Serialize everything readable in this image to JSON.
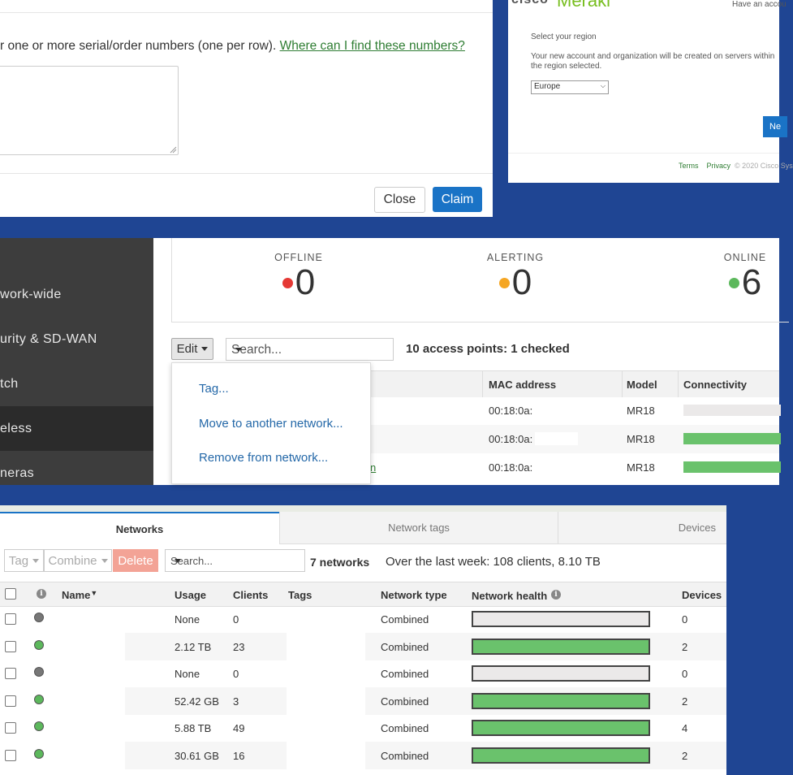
{
  "colors": {
    "background_blue": "#1f4593",
    "primary": "#1a73c6",
    "link_green": "#2e7d32",
    "status_offline": "#e53935",
    "status_alerting": "#f5a623",
    "status_online": "#5cb85c",
    "bar_green": "#6ac26c",
    "bar_empty": "#ebe9e9",
    "delete_salmon": "#f3a396"
  },
  "claim_dialog": {
    "instruction_text": "r one or more serial/order numbers (one per row).",
    "help_link": "Where can I find these numbers?",
    "close_label": "Close",
    "claim_label": "Claim"
  },
  "region_dialog": {
    "logo_left": "cisco",
    "logo_right": "Meraki",
    "have_account": "Have an accou",
    "select_label": "Select your region",
    "description": "Your new account and organization will be created on servers within the region selected.",
    "region_value": "Europe",
    "next_label": "Ne",
    "footer_terms": "Terms",
    "footer_privacy": "Privacy",
    "footer_copyright": "© 2020 Cisco Sys"
  },
  "sidebar": {
    "items": [
      {
        "label": "work-wide"
      },
      {
        "label": "urity & SD-WAN"
      },
      {
        "label": "tch"
      },
      {
        "label": "eless"
      },
      {
        "label": "neras"
      }
    ]
  },
  "status_counts": {
    "offline": {
      "label": "OFFLINE",
      "value": "0"
    },
    "alerting": {
      "label": "ALERTING",
      "value": "0"
    },
    "online": {
      "label": "ONLINE",
      "value": "6"
    }
  },
  "ap_toolbar": {
    "edit_label": "Edit",
    "search_placeholder": "Search...",
    "count_text": "10 access points: 1 checked"
  },
  "edit_menu": {
    "items": [
      "Tag...",
      "Move to another network...",
      "Remove from network..."
    ]
  },
  "ap_table": {
    "columns": [
      "MAC address",
      "Model",
      "Connectivity"
    ],
    "rows": [
      {
        "mac": "00:18:0a:",
        "model": "MR18",
        "connectivity": 0
      },
      {
        "mac": "00:18:0a:",
        "model": "MR18",
        "connectivity": 1
      },
      {
        "name_fragment": "n",
        "mac": "00:18:0a:",
        "model": "MR18",
        "connectivity": 1
      }
    ]
  },
  "networks": {
    "tabs": [
      "Networks",
      "Network tags",
      "Devices"
    ],
    "tag_label": "Tag",
    "combine_label": "Combine",
    "delete_label": "Delete",
    "search_placeholder": "Search...",
    "count_text": "7 networks",
    "summary_text": "Over the last week: 108 clients, 8.10 TB",
    "columns": {
      "name": "Name",
      "usage": "Usage",
      "clients": "Clients",
      "tags": "Tags",
      "network_type": "Network type",
      "network_health": "Network health",
      "devices": "Devices"
    },
    "rows": [
      {
        "usage": "None",
        "clients": "0",
        "type": "Combined",
        "health": 0,
        "devices": "0",
        "status": "gray"
      },
      {
        "usage": "2.12 TB",
        "clients": "23",
        "type": "Combined",
        "health": 1,
        "devices": "2",
        "status": "green"
      },
      {
        "usage": "None",
        "clients": "0",
        "type": "Combined",
        "health": 0,
        "devices": "0",
        "status": "gray"
      },
      {
        "usage": "52.42 GB",
        "clients": "3",
        "type": "Combined",
        "health": 1,
        "devices": "2",
        "status": "green"
      },
      {
        "usage": "5.88 TB",
        "clients": "49",
        "type": "Combined",
        "health": 1,
        "devices": "4",
        "status": "green"
      },
      {
        "usage": "30.61 GB",
        "clients": "16",
        "type": "Combined",
        "health": 1,
        "devices": "2",
        "status": "green"
      }
    ]
  }
}
